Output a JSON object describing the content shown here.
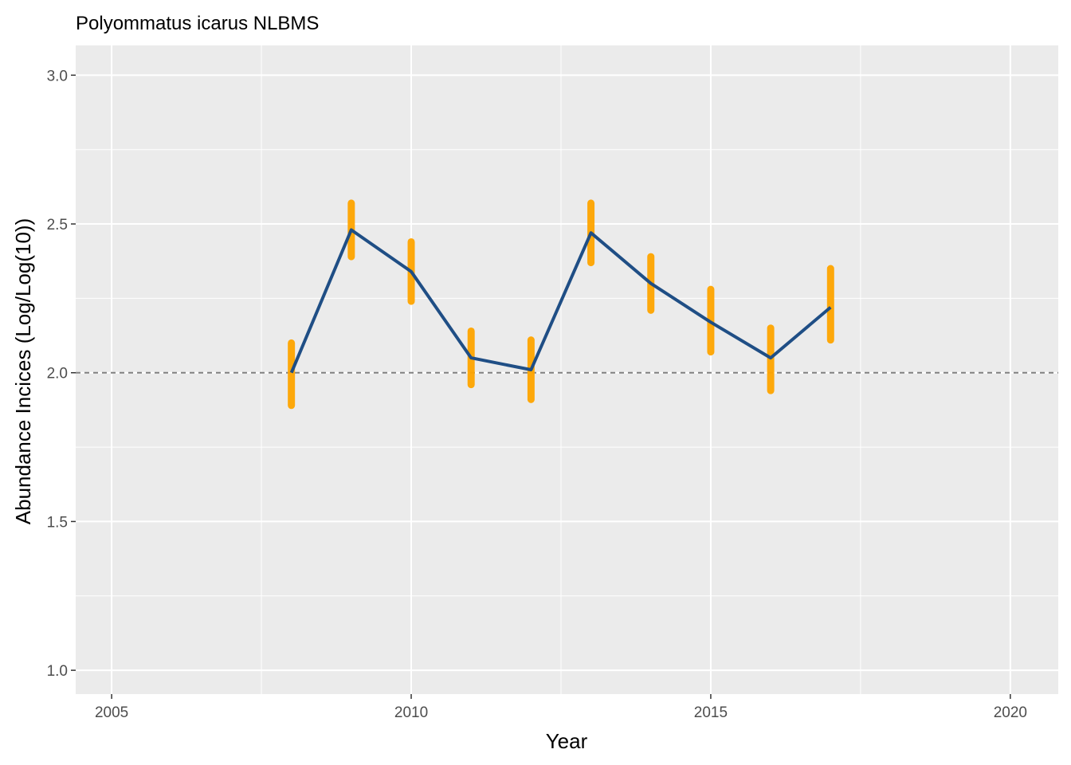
{
  "chart_data": {
    "type": "line",
    "title": "Polyommatus icarus NLBMS",
    "xlabel": "Year",
    "ylabel": "Abundance Incices (Log/Log(10))",
    "xlim": [
      2004.4,
      2020.8
    ],
    "ylim": [
      0.92,
      3.1
    ],
    "x_ticks": [
      2005,
      2010,
      2015,
      2020
    ],
    "x_tick_labels": [
      "2005",
      "2010",
      "2015",
      "2020"
    ],
    "y_ticks": [
      1.0,
      1.5,
      2.0,
      2.5,
      3.0
    ],
    "y_tick_labels": [
      "1.0",
      "1.5",
      "2.0",
      "2.5",
      "3.0"
    ],
    "reference_line": 2.0,
    "grid": true,
    "series": [
      {
        "x": [
          2008,
          2009,
          2010,
          2011,
          2012,
          2013,
          2014,
          2015,
          2016,
          2017
        ],
        "values": [
          2.0,
          2.48,
          2.34,
          2.05,
          2.01,
          2.47,
          2.3,
          2.17,
          2.05,
          2.22
        ],
        "lower": [
          1.89,
          2.39,
          2.24,
          1.96,
          1.91,
          2.37,
          2.21,
          2.07,
          1.94,
          2.11
        ],
        "upper": [
          2.1,
          2.57,
          2.44,
          2.14,
          2.11,
          2.57,
          2.39,
          2.28,
          2.15,
          2.35
        ]
      }
    ],
    "colors": {
      "line": "#1f4e85",
      "interval": "#ffa500",
      "panel": "#ebebeb",
      "grid": "#ffffff",
      "reference": "#808080"
    }
  }
}
